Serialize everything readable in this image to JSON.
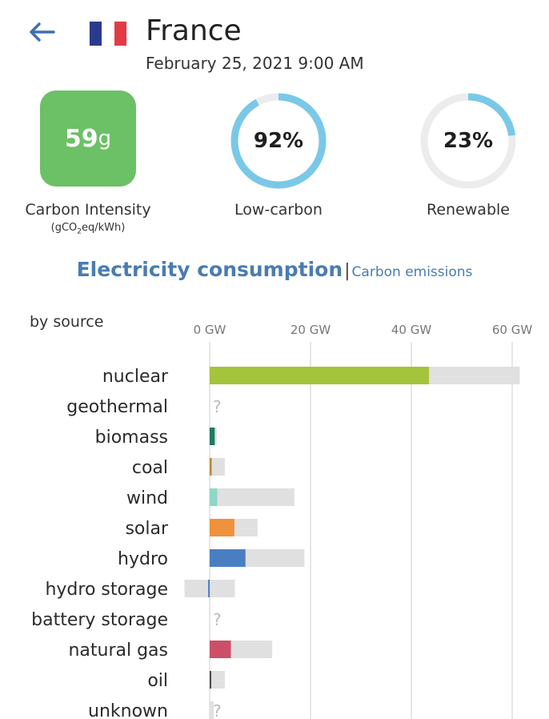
{
  "header": {
    "country": "France",
    "datetime": "February 25, 2021 9:00 AM",
    "flag_colors": [
      "#2b3a8f",
      "#ffffff",
      "#e23b45"
    ]
  },
  "metrics": {
    "carbon_intensity": {
      "value": "59",
      "unit": "g",
      "label": "Carbon Intensity",
      "sublabel_prefix": "(gCO",
      "sublabel_sub": "2",
      "sublabel_suffix": "eq/kWh)",
      "color": "#6cc066"
    },
    "low_carbon": {
      "value": "92%",
      "label": "Low-carbon",
      "fraction": 0.92
    },
    "renewable": {
      "value": "23%",
      "label": "Renewable",
      "fraction": 0.23
    },
    "ring_color": "#7ac8e8",
    "ring_track_color": "#ececec"
  },
  "tabs": {
    "active": "Electricity consumption",
    "separator": "|",
    "inactive": "Carbon emissions"
  },
  "chart_data": {
    "type": "bar",
    "title": "by source",
    "x_ticks": [
      "0 GW",
      "20 GW",
      "40 GW",
      "60 GW"
    ],
    "x_tick_values": [
      0,
      20,
      40,
      60
    ],
    "xlim": [
      -5,
      62
    ],
    "unit": "GW",
    "grid": true,
    "unknown_marker": "?",
    "categories": [
      "nuclear",
      "geothermal",
      "biomass",
      "coal",
      "wind",
      "solar",
      "hydro",
      "hydro storage",
      "battery storage",
      "natural gas",
      "oil",
      "unknown"
    ],
    "series": [
      {
        "name": "production",
        "values": [
          43.5,
          null,
          1.0,
          0.4,
          1.5,
          4.9,
          7.1,
          -0.3,
          null,
          4.2,
          0.2,
          0.0
        ],
        "colors": [
          "#a4c43b",
          null,
          "#1f7a62",
          "#b88a3c",
          "#8fd6c6",
          "#f0913c",
          "#4a7ec2",
          "#4a7ec2",
          null,
          "#cc4f67",
          "#4a4a4a",
          "#999999"
        ]
      },
      {
        "name": "capacity",
        "values": [
          61.5,
          null,
          1.4,
          3.0,
          16.8,
          9.5,
          18.8,
          5.0,
          null,
          12.4,
          3.0,
          0.8
        ],
        "min_values": [
          0,
          null,
          0,
          0,
          0,
          0,
          0,
          -5.0,
          null,
          0,
          0,
          0
        ]
      }
    ],
    "unknown_categories": [
      "geothermal",
      "battery storage",
      "unknown"
    ]
  }
}
